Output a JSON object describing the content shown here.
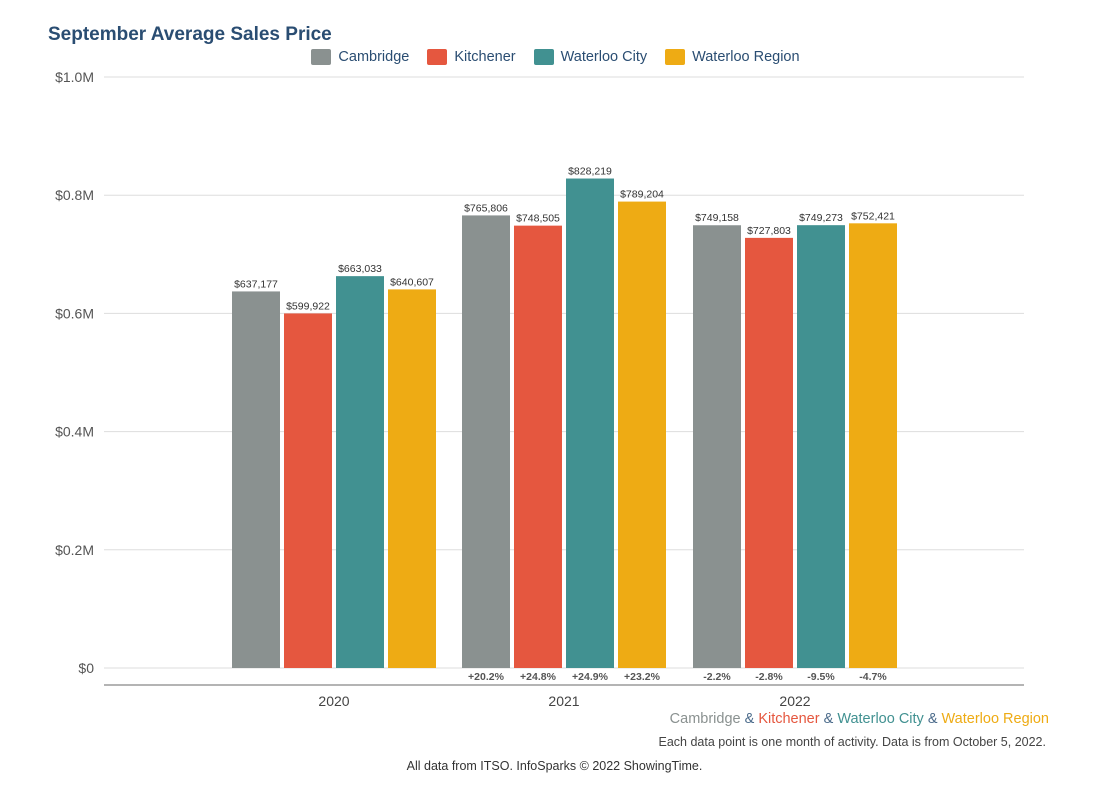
{
  "chart_data": {
    "type": "bar",
    "title": "September Average Sales Price",
    "categories": [
      "2020",
      "2021",
      "2022"
    ],
    "series": [
      {
        "name": "Cambridge",
        "color": "#8a9190",
        "values": [
          637177,
          765806,
          749158
        ],
        "labels": [
          "$637,177",
          "$765,806",
          "$749,158"
        ],
        "changes": [
          "",
          "+20.2%",
          "-2.2%"
        ]
      },
      {
        "name": "Kitchener",
        "color": "#e5573f",
        "values": [
          599922,
          748505,
          727803
        ],
        "labels": [
          "$599,922",
          "$748,505",
          "$727,803"
        ],
        "changes": [
          "",
          "+24.8%",
          "-2.8%"
        ]
      },
      {
        "name": "Waterloo City",
        "color": "#419191",
        "values": [
          663033,
          828219,
          749273
        ],
        "labels": [
          "$663,033",
          "$828,219",
          "$749,273"
        ],
        "changes": [
          "",
          "+24.9%",
          "-9.5%"
        ]
      },
      {
        "name": "Waterloo Region",
        "color": "#eeab14",
        "values": [
          640607,
          789204,
          752421
        ],
        "labels": [
          "$640,607",
          "$789,204",
          "$752,421"
        ],
        "changes": [
          "",
          "+23.2%",
          "-4.7%"
        ]
      }
    ],
    "ylim": [
      0,
      1000000
    ],
    "yticks": [
      {
        "value": 0,
        "label": "$0"
      },
      {
        "value": 200000,
        "label": "$0.2M"
      },
      {
        "value": 400000,
        "label": "$0.4M"
      },
      {
        "value": 600000,
        "label": "$0.6M"
      },
      {
        "value": 800000,
        "label": "$0.8M"
      },
      {
        "value": 1000000,
        "label": "$1.0M"
      }
    ],
    "grid": true,
    "legend_position": "top-center"
  },
  "footer": {
    "series_names": [
      "Cambridge",
      "Kitchener",
      "Waterloo City",
      "Waterloo Region"
    ],
    "separator": "&",
    "note": "Each data point is one month of activity. Data is from October 5, 2022.",
    "source": "All data from ITSO. InfoSparks © 2022 ShowingTime."
  }
}
